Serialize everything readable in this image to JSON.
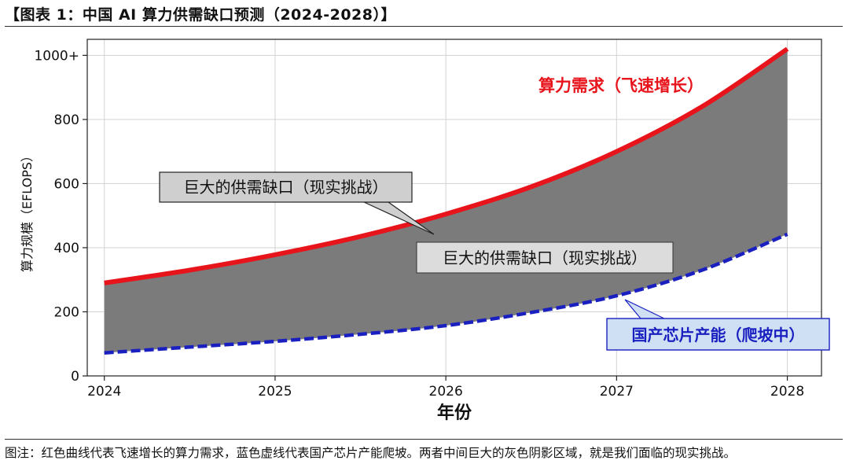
{
  "header": {
    "title": "【图表 1：中国 AI 算力供需缺口预测（2024-2028）】"
  },
  "footer": {
    "note": "图注：红色曲线代表飞速增长的算力需求，蓝色虚线代表国产芯片产能爬坡。两者中间巨大的灰色阴影区域，就是我们面临的现实挑战。"
  },
  "colors": {
    "demand": "#e8141b",
    "supply": "#1a1fbf",
    "gap": "#7b7b7b",
    "grid": "#d3d3d3"
  },
  "chart_data": {
    "type": "area",
    "xlabel": "年份",
    "ylabel": "算力规模（EFLOPS）",
    "x": [
      2024,
      2024.5,
      2025,
      2025.5,
      2026,
      2026.5,
      2027,
      2027.5,
      2028
    ],
    "xticks": [
      2024,
      2025,
      2026,
      2027,
      2028
    ],
    "yticks": [
      0,
      200,
      400,
      600,
      800,
      1000
    ],
    "ytick_labels": [
      "0",
      "200",
      "400",
      "600",
      "800",
      "1000+"
    ],
    "xlim": [
      2023.9,
      2028.2
    ],
    "ylim": [
      0,
      1050
    ],
    "grid": true,
    "series": [
      {
        "name": "算力需求（飞速增长）",
        "style": "solid",
        "values": [
          290,
          330,
          378,
          435,
          505,
          590,
          700,
          840,
          1020
        ]
      },
      {
        "name": "国产芯片产能（爬坡中）",
        "style": "dashed",
        "values": [
          72,
          90,
          108,
          130,
          157,
          198,
          250,
          330,
          442
        ]
      }
    ],
    "annotations": [
      {
        "text": "巨大的供需缺口（现实挑战）",
        "kind": "callout-top"
      },
      {
        "text": "巨大的供需缺口（现实挑战）",
        "kind": "label-center"
      }
    ]
  }
}
